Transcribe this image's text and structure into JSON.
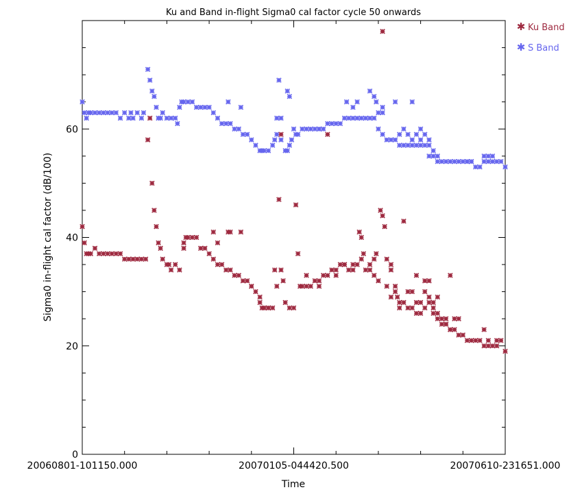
{
  "chart_data": {
    "type": "scatter",
    "title": "Ku and Band in-flight Sigma0 cal factor cycle 50 onwards",
    "xlabel": "Time",
    "ylabel": "Sigma0 in-flight cal factor (dB/100)",
    "ylim": [
      0,
      80
    ],
    "yticks": [
      0,
      20,
      40,
      60
    ],
    "xlim": [
      0,
      100
    ],
    "xticks": [
      {
        "x": 0,
        "label": "20060801-101150.000"
      },
      {
        "x": 50,
        "label": "20070105-044420.500"
      },
      {
        "x": 100,
        "label": "20070610-231651.000"
      }
    ],
    "marker": "asterisk",
    "legend_position": "top-right (outside plot)",
    "colors": {
      "ku": "#9e2a40",
      "s": "#6666ee",
      "axis": "#000000"
    },
    "series": [
      {
        "name": "S Band",
        "points": [
          [
            0,
            65
          ],
          [
            0.5,
            63
          ],
          [
            1,
            62
          ],
          [
            1.5,
            63
          ],
          [
            2,
            63
          ],
          [
            3,
            63
          ],
          [
            4,
            63
          ],
          [
            5,
            63
          ],
          [
            6,
            63
          ],
          [
            7,
            63
          ],
          [
            8,
            63
          ],
          [
            9,
            62
          ],
          [
            10,
            63
          ],
          [
            11,
            62
          ],
          [
            11.5,
            63
          ],
          [
            12,
            62
          ],
          [
            13,
            63
          ],
          [
            14,
            62
          ],
          [
            14.5,
            63
          ],
          [
            15.5,
            71
          ],
          [
            16,
            69
          ],
          [
            16.5,
            67
          ],
          [
            17,
            66
          ],
          [
            17.5,
            64
          ],
          [
            18,
            62
          ],
          [
            18.5,
            62
          ],
          [
            19,
            63
          ],
          [
            20,
            62
          ],
          [
            21,
            62
          ],
          [
            22,
            62
          ],
          [
            22.5,
            61
          ],
          [
            23,
            64
          ],
          [
            23.5,
            65
          ],
          [
            24,
            65
          ],
          [
            25,
            65
          ],
          [
            26,
            65
          ],
          [
            27,
            64
          ],
          [
            28,
            64
          ],
          [
            29,
            64
          ],
          [
            30,
            64
          ],
          [
            31,
            63
          ],
          [
            32,
            62
          ],
          [
            33,
            61
          ],
          [
            34,
            61
          ],
          [
            34.5,
            65
          ],
          [
            35,
            61
          ],
          [
            36,
            60
          ],
          [
            37,
            60
          ],
          [
            37.5,
            64
          ],
          [
            38,
            59
          ],
          [
            39,
            59
          ],
          [
            40,
            58
          ],
          [
            41,
            57
          ],
          [
            42,
            56
          ],
          [
            42.5,
            56
          ],
          [
            43,
            56
          ],
          [
            44,
            56
          ],
          [
            45,
            57
          ],
          [
            45.5,
            58
          ],
          [
            46,
            59
          ],
          [
            46.5,
            69
          ],
          [
            47,
            58
          ],
          [
            48,
            56
          ],
          [
            48.5,
            56
          ],
          [
            49,
            57
          ],
          [
            49.5,
            58
          ],
          [
            50,
            60
          ],
          [
            50.5,
            59
          ],
          [
            51,
            59
          ],
          [
            52,
            60
          ],
          [
            53,
            60
          ],
          [
            54,
            60
          ],
          [
            55,
            60
          ],
          [
            56,
            60
          ],
          [
            57,
            60
          ],
          [
            58,
            61
          ],
          [
            59,
            61
          ],
          [
            60,
            61
          ],
          [
            61,
            61
          ],
          [
            62,
            62
          ],
          [
            62.5,
            65
          ],
          [
            63,
            62
          ],
          [
            64,
            62
          ],
          [
            65,
            62
          ],
          [
            66,
            62
          ],
          [
            67,
            62
          ],
          [
            68,
            62
          ],
          [
            69,
            62
          ],
          [
            70,
            60
          ],
          [
            71,
            59
          ],
          [
            72,
            58
          ],
          [
            73,
            58
          ],
          [
            74,
            58
          ],
          [
            75,
            57
          ],
          [
            76,
            57
          ],
          [
            77,
            57
          ],
          [
            78,
            57
          ],
          [
            79,
            57
          ],
          [
            80,
            57
          ],
          [
            81,
            57
          ],
          [
            82,
            57
          ],
          [
            83,
            56
          ],
          [
            84,
            55
          ],
          [
            85,
            54
          ],
          [
            86,
            54
          ],
          [
            87,
            54
          ],
          [
            88,
            54
          ],
          [
            89,
            54
          ],
          [
            90,
            54
          ],
          [
            91,
            54
          ],
          [
            92,
            54
          ],
          [
            93,
            53
          ],
          [
            94,
            53
          ],
          [
            95,
            54
          ],
          [
            96,
            54
          ],
          [
            97,
            54
          ],
          [
            98,
            54
          ],
          [
            99,
            54
          ],
          [
            100,
            53
          ],
          [
            46,
            62
          ],
          [
            47,
            62
          ],
          [
            48.5,
            67
          ],
          [
            49,
            66
          ],
          [
            56,
            60
          ],
          [
            64,
            64
          ],
          [
            65,
            65
          ],
          [
            68,
            67
          ],
          [
            69,
            66
          ],
          [
            69.5,
            65
          ],
          [
            71,
            64
          ],
          [
            75,
            59
          ],
          [
            76,
            60
          ],
          [
            77,
            59
          ],
          [
            78,
            58
          ],
          [
            79,
            59
          ],
          [
            80,
            60
          ],
          [
            81,
            59
          ],
          [
            82,
            55
          ],
          [
            83,
            55
          ],
          [
            84,
            54
          ],
          [
            91,
            54
          ],
          [
            92,
            54
          ],
          [
            95,
            55
          ],
          [
            96,
            55
          ],
          [
            97,
            55
          ],
          [
            70,
            63
          ],
          [
            71,
            63
          ],
          [
            74,
            65
          ],
          [
            78,
            65
          ],
          [
            80,
            58
          ],
          [
            82,
            58
          ]
        ]
      },
      {
        "name": "Ku Band",
        "points": [
          [
            0,
            42
          ],
          [
            0.5,
            39
          ],
          [
            1,
            37
          ],
          [
            1.5,
            37
          ],
          [
            2,
            37
          ],
          [
            3,
            38
          ],
          [
            4,
            37
          ],
          [
            5,
            37
          ],
          [
            6,
            37
          ],
          [
            7,
            37
          ],
          [
            8,
            37
          ],
          [
            9,
            37
          ],
          [
            10,
            36
          ],
          [
            11,
            36
          ],
          [
            12,
            36
          ],
          [
            13,
            36
          ],
          [
            14,
            36
          ],
          [
            15,
            36
          ],
          [
            15.5,
            58
          ],
          [
            16,
            62
          ],
          [
            16.5,
            50
          ],
          [
            17,
            45
          ],
          [
            17.5,
            42
          ],
          [
            18,
            39
          ],
          [
            18.5,
            38
          ],
          [
            19,
            36
          ],
          [
            20,
            35
          ],
          [
            20.5,
            35
          ],
          [
            21,
            34
          ],
          [
            22,
            35
          ],
          [
            23,
            34
          ],
          [
            24,
            38
          ],
          [
            24.5,
            40
          ],
          [
            25,
            40
          ],
          [
            26,
            40
          ],
          [
            27,
            40
          ],
          [
            28,
            38
          ],
          [
            29,
            38
          ],
          [
            30,
            37
          ],
          [
            31,
            36
          ],
          [
            32,
            35
          ],
          [
            33,
            35
          ],
          [
            34,
            34
          ],
          [
            34.5,
            41
          ],
          [
            35,
            34
          ],
          [
            36,
            33
          ],
          [
            37,
            33
          ],
          [
            37.5,
            41
          ],
          [
            38,
            32
          ],
          [
            39,
            32
          ],
          [
            40,
            31
          ],
          [
            41,
            30
          ],
          [
            42,
            28
          ],
          [
            42.5,
            27
          ],
          [
            43,
            27
          ],
          [
            44,
            27
          ],
          [
            45,
            27
          ],
          [
            45.5,
            34
          ],
          [
            46,
            31
          ],
          [
            46.5,
            47
          ],
          [
            47,
            34
          ],
          [
            47.5,
            32
          ],
          [
            48,
            28
          ],
          [
            49,
            27
          ],
          [
            50,
            27
          ],
          [
            50.5,
            46
          ],
          [
            51,
            37
          ],
          [
            51.5,
            31
          ],
          [
            52,
            31
          ],
          [
            53,
            31
          ],
          [
            54,
            31
          ],
          [
            55,
            32
          ],
          [
            56,
            32
          ],
          [
            57,
            33
          ],
          [
            58,
            33
          ],
          [
            59,
            34
          ],
          [
            60,
            34
          ],
          [
            61,
            35
          ],
          [
            62,
            35
          ],
          [
            63,
            34
          ],
          [
            64,
            34
          ],
          [
            65,
            35
          ],
          [
            65.5,
            41
          ],
          [
            66,
            40
          ],
          [
            66.5,
            37
          ],
          [
            67,
            34
          ],
          [
            68,
            34
          ],
          [
            69,
            33
          ],
          [
            70,
            32
          ],
          [
            70.5,
            45
          ],
          [
            71,
            44
          ],
          [
            71.5,
            42
          ],
          [
            72,
            36
          ],
          [
            73,
            35
          ],
          [
            74,
            31
          ],
          [
            74.5,
            29
          ],
          [
            75,
            28
          ],
          [
            76,
            28
          ],
          [
            77,
            27
          ],
          [
            78,
            27
          ],
          [
            79,
            26
          ],
          [
            80,
            26
          ],
          [
            81,
            27
          ],
          [
            82,
            28
          ],
          [
            83,
            26
          ],
          [
            84,
            25
          ],
          [
            85,
            24
          ],
          [
            86,
            24
          ],
          [
            87,
            23
          ],
          [
            88,
            23
          ],
          [
            89,
            22
          ],
          [
            90,
            22
          ],
          [
            91,
            21
          ],
          [
            92,
            21
          ],
          [
            93,
            21
          ],
          [
            94,
            21
          ],
          [
            95,
            20
          ],
          [
            96,
            20
          ],
          [
            97,
            20
          ],
          [
            98,
            20
          ],
          [
            99,
            21
          ],
          [
            100,
            19
          ],
          [
            71,
            78
          ],
          [
            58,
            59
          ],
          [
            47,
            59
          ],
          [
            24,
            39
          ],
          [
            31,
            41
          ],
          [
            32,
            39
          ],
          [
            35,
            41
          ],
          [
            40,
            31
          ],
          [
            42,
            29
          ],
          [
            43,
            27
          ],
          [
            44,
            27
          ],
          [
            69.5,
            37
          ],
          [
            72,
            31
          ],
          [
            73,
            34
          ],
          [
            74,
            30
          ],
          [
            76,
            43
          ],
          [
            78,
            30
          ],
          [
            79,
            28
          ],
          [
            80,
            28
          ],
          [
            81,
            32
          ],
          [
            82,
            32
          ],
          [
            83,
            28
          ],
          [
            84,
            29
          ],
          [
            85,
            25
          ],
          [
            86,
            25
          ],
          [
            87,
            33
          ],
          [
            88,
            25
          ],
          [
            89,
            25
          ],
          [
            95,
            23
          ],
          [
            96,
            21
          ],
          [
            98,
            21
          ],
          [
            53,
            33
          ],
          [
            56,
            31
          ],
          [
            60,
            33
          ],
          [
            62,
            35
          ],
          [
            64,
            35
          ],
          [
            66,
            36
          ],
          [
            68,
            35
          ],
          [
            69,
            36
          ],
          [
            73,
            29
          ],
          [
            75,
            27
          ],
          [
            77,
            30
          ],
          [
            79,
            33
          ],
          [
            81,
            30
          ],
          [
            82,
            29
          ],
          [
            83,
            27
          ],
          [
            84,
            26
          ],
          [
            86,
            24
          ],
          [
            87,
            23
          ]
        ]
      }
    ]
  }
}
